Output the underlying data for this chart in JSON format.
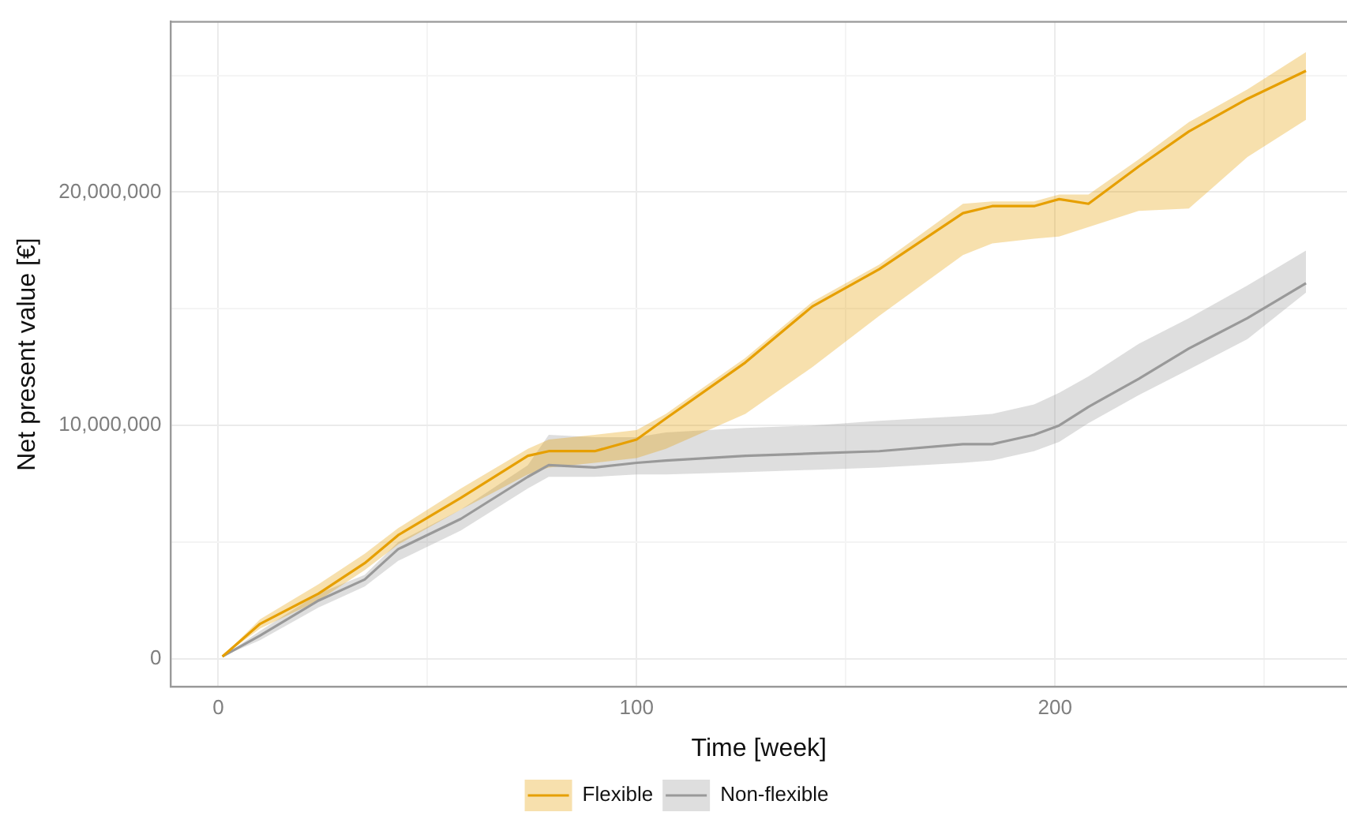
{
  "chart_data": {
    "type": "line",
    "xlabel": "Time [week]",
    "ylabel": "Net present value [€]",
    "xlim": [
      -11.3,
      269.8
    ],
    "ylim": [
      -1200000,
      27300000
    ],
    "xticks": [
      0,
      {
        "value": 50,
        "label": null
      },
      100,
      {
        "value": 150,
        "label": null
      },
      200,
      {
        "value": 250,
        "label": null
      }
    ],
    "yticks": [
      {
        "value": 0,
        "label": "0"
      },
      {
        "value": 5000000,
        "label": null
      },
      {
        "value": 10000000,
        "label": "10,000,000"
      },
      {
        "value": 15000000,
        "label": null
      },
      {
        "value": 20000000,
        "label": "20,000,000"
      },
      {
        "value": 25000000,
        "label": null
      }
    ],
    "grid": true,
    "legend": "bottom",
    "marker": "none",
    "line_style": "solid",
    "x": [
      1,
      10,
      24,
      35,
      43,
      58,
      74,
      79,
      90,
      100,
      107,
      126,
      142,
      158,
      178,
      185,
      195,
      201,
      208,
      220,
      232,
      246,
      260
    ],
    "series": [
      {
        "name": "Flexible",
        "color": "#e69f00",
        "values": [
          100000,
          1500000,
          2800000,
          4100000,
          5300000,
          6900000,
          8700000,
          8900000,
          8900000,
          9400000,
          10300000,
          12700000,
          15100000,
          16700000,
          19100000,
          19400000,
          19400000,
          19700000,
          19500000,
          21100000,
          22600000,
          24000000,
          25200000
        ],
        "lower": [
          100000,
          1300000,
          2500000,
          3800000,
          4900000,
          6400000,
          7900000,
          8200000,
          8400000,
          8600000,
          9000000,
          10500000,
          12500000,
          14700000,
          17300000,
          17800000,
          18000000,
          18100000,
          18500000,
          19200000,
          19300000,
          21500000,
          23100000
        ],
        "upper": [
          100000,
          1700000,
          3200000,
          4500000,
          5600000,
          7300000,
          9000000,
          9400000,
          9600000,
          9800000,
          10500000,
          12900000,
          15300000,
          16900000,
          19500000,
          19600000,
          19600000,
          19900000,
          19900000,
          21400000,
          23000000,
          24400000,
          26000000
        ]
      },
      {
        "name": "Non-flexible",
        "color": "#999999",
        "values": [
          100000,
          1000000,
          2500000,
          3400000,
          4700000,
          6000000,
          7800000,
          8300000,
          8200000,
          8400000,
          8500000,
          8700000,
          8800000,
          8900000,
          9200000,
          9200000,
          9600000,
          10000000,
          10800000,
          12000000,
          13300000,
          14600000,
          16100000
        ],
        "lower": [
          100000,
          800000,
          2200000,
          3100000,
          4200000,
          5500000,
          7300000,
          7800000,
          7800000,
          7900000,
          7900000,
          8000000,
          8100000,
          8200000,
          8400000,
          8500000,
          8900000,
          9300000,
          10100000,
          11300000,
          12400000,
          13700000,
          15700000
        ],
        "upper": [
          100000,
          1200000,
          2800000,
          3600000,
          5000000,
          6400000,
          8300000,
          9600000,
          9500000,
          9500000,
          9700000,
          9900000,
          10000000,
          10200000,
          10400000,
          10500000,
          10900000,
          11400000,
          12100000,
          13500000,
          14600000,
          16000000,
          17500000
        ]
      }
    ]
  }
}
